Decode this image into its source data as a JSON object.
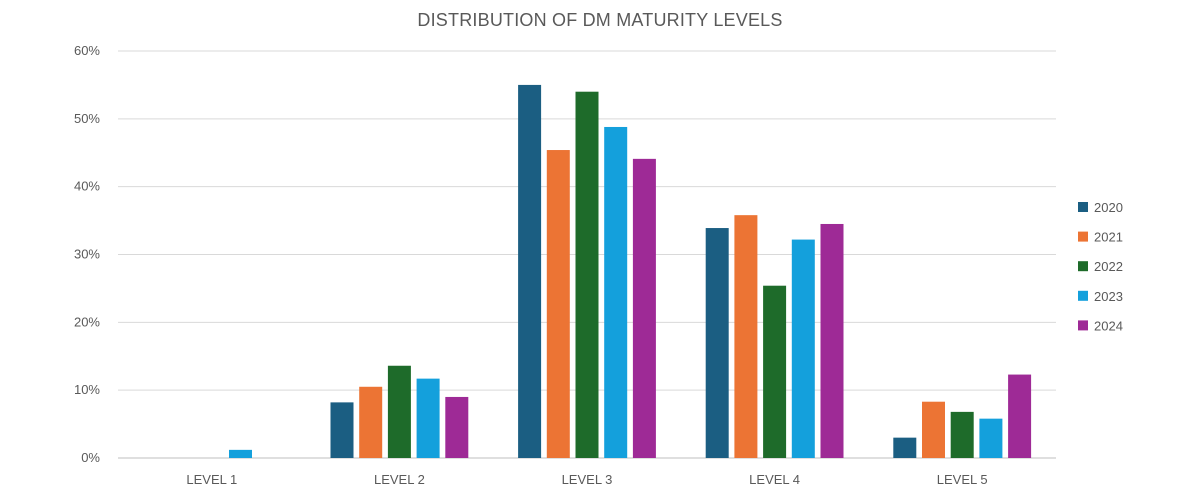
{
  "chart_data": {
    "type": "bar",
    "title": "DISTRIBUTION OF DM MATURITY LEVELS",
    "categories": [
      "LEVEL 1",
      "LEVEL 2",
      "LEVEL 3",
      "LEVEL 4",
      "LEVEL 5"
    ],
    "series": [
      {
        "name": "2020",
        "color": "#1b5e82",
        "values": [
          0,
          8.2,
          55.0,
          33.9,
          3.0
        ]
      },
      {
        "name": "2021",
        "color": "#ec7434",
        "values": [
          0,
          10.5,
          45.4,
          35.8,
          8.3
        ]
      },
      {
        "name": "2022",
        "color": "#1e6b2a",
        "values": [
          0,
          13.6,
          54.0,
          25.4,
          6.8
        ]
      },
      {
        "name": "2023",
        "color": "#14a0dc",
        "values": [
          1.2,
          11.7,
          48.8,
          32.2,
          5.8
        ]
      },
      {
        "name": "2024",
        "color": "#9e2a96",
        "values": [
          0,
          9.0,
          44.1,
          34.5,
          12.3
        ]
      }
    ],
    "ylim": [
      0,
      60
    ],
    "yticks": [
      0,
      10,
      20,
      30,
      40,
      50,
      60
    ],
    "ytick_labels": [
      "0%",
      "10%",
      "20%",
      "30%",
      "40%",
      "50%",
      "60%"
    ],
    "xlabel": "",
    "ylabel": "",
    "grid": true,
    "legend_position": "right"
  }
}
